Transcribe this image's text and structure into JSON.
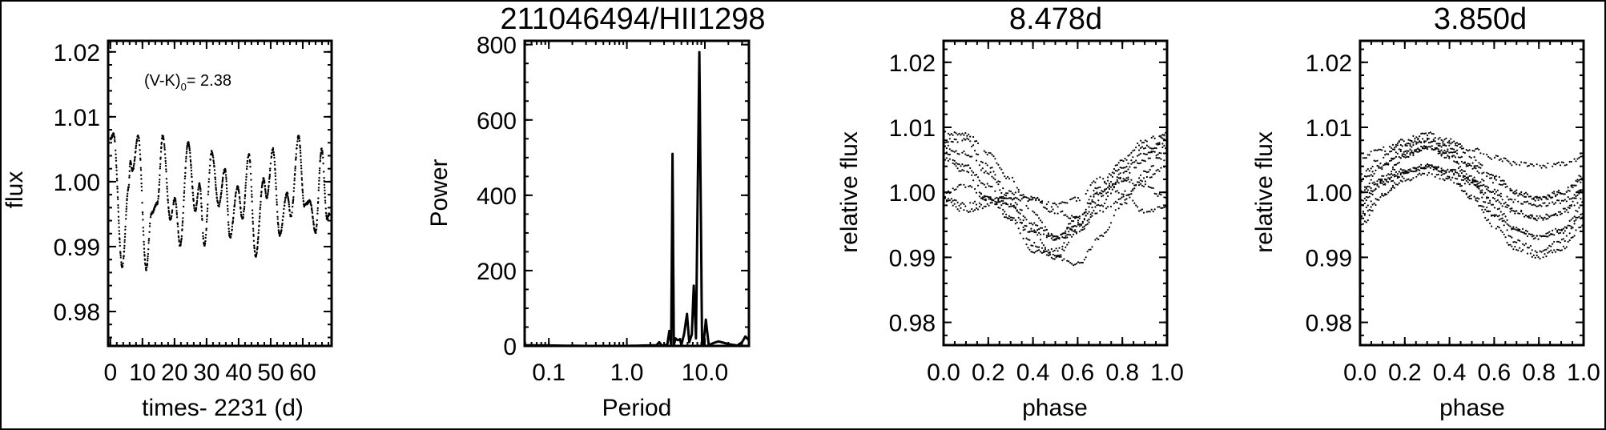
{
  "figure": {
    "background": "#ffffff",
    "ink": "#000000"
  },
  "chart_data": [
    {
      "type": "scatter",
      "title": "",
      "xlabel": "times- 2231 (d)",
      "ylabel": "flux",
      "annotation": {
        "text": "(V-K)",
        "subscript": "0",
        "value": "= 2.38"
      },
      "xlim": [
        -0.7,
        69
      ],
      "ylim": [
        0.9747,
        1.0217
      ],
      "xticks": [
        0,
        10,
        20,
        30,
        40,
        50,
        60
      ],
      "xtick_labels": [
        "0",
        "10",
        "20",
        "30",
        "40",
        "50",
        "60"
      ],
      "yticks": [
        0.98,
        0.99,
        1.0,
        1.01,
        1.02
      ],
      "ytick_labels": [
        "0.98",
        "0.99",
        "1.00",
        "1.01",
        "1.02"
      ],
      "points": [
        [
          0.0,
          1.0066
        ],
        [
          1.0,
          1.0073
        ],
        [
          3.7,
          0.9869
        ],
        [
          5.7,
          0.9991
        ],
        [
          6.2,
          1.0031
        ],
        [
          6.9,
          1.0017
        ],
        [
          8.7,
          1.007
        ],
        [
          11.2,
          0.9865
        ],
        [
          12.8,
          0.9951
        ],
        [
          14.7,
          0.9967
        ],
        [
          16.3,
          1.007
        ],
        [
          18.7,
          0.9943
        ],
        [
          20.1,
          0.9974
        ],
        [
          21.75,
          0.9902
        ],
        [
          24.25,
          1.006
        ],
        [
          26.5,
          0.9955
        ],
        [
          27.8,
          0.9996
        ],
        [
          29.3,
          0.9902
        ],
        [
          31.6,
          1.0046
        ],
        [
          33.8,
          0.9963
        ],
        [
          35.75,
          1.0019
        ],
        [
          37.3,
          0.9914
        ],
        [
          39.7,
          0.9992
        ],
        [
          41.2,
          0.9943
        ],
        [
          43.2,
          1.0042
        ],
        [
          45.3,
          0.9885
        ],
        [
          47.8,
          1.0004
        ],
        [
          48.8,
          0.9976
        ],
        [
          50.7,
          1.005
        ],
        [
          52.8,
          0.9918
        ],
        [
          55.1,
          0.9982
        ],
        [
          56.3,
          0.9947
        ],
        [
          58.7,
          1.007
        ],
        [
          60.5,
          0.9963
        ],
        [
          62.2,
          0.997
        ],
        [
          64.0,
          0.9922
        ],
        [
          65.9,
          1.005
        ],
        [
          67.6,
          0.9943
        ],
        [
          68.4,
          0.9951
        ]
      ]
    },
    {
      "type": "line",
      "title": "211046494/HII1298",
      "xlabel": "Period",
      "ylabel": "Power",
      "xscale": "log",
      "xlim": [
        0.049,
        36.7
      ],
      "ylim": [
        0,
        810
      ],
      "xticks": [
        0.1,
        1.0,
        10.0
      ],
      "xtick_labels": [
        "0.1",
        "1.0",
        "10.0"
      ],
      "yticks": [
        0,
        200,
        400,
        600,
        800
      ],
      "ytick_labels": [
        "0",
        "200",
        "400",
        "600",
        "800"
      ],
      "points": [
        [
          0.049,
          2
        ],
        [
          0.3,
          0
        ],
        [
          1.0,
          0
        ],
        [
          2.4,
          2
        ],
        [
          2.6,
          10
        ],
        [
          2.8,
          1
        ],
        [
          3.3,
          3
        ],
        [
          3.5,
          40
        ],
        [
          3.7,
          2
        ],
        [
          3.85,
          510
        ],
        [
          4.0,
          2
        ],
        [
          4.2,
          20
        ],
        [
          4.5,
          15
        ],
        [
          4.8,
          18
        ],
        [
          5.0,
          3
        ],
        [
          5.4,
          30
        ],
        [
          5.9,
          85
        ],
        [
          6.3,
          10
        ],
        [
          6.8,
          30
        ],
        [
          7.2,
          160
        ],
        [
          7.7,
          20
        ],
        [
          8.5,
          780
        ],
        [
          9.2,
          5
        ],
        [
          9.6,
          5
        ],
        [
          10.3,
          70
        ],
        [
          11.2,
          2
        ],
        [
          13.0,
          8
        ],
        [
          15.0,
          12
        ],
        [
          20.0,
          5
        ],
        [
          26.0,
          1
        ],
        [
          30.0,
          10
        ],
        [
          33.0,
          25
        ],
        [
          36.7,
          15
        ]
      ]
    },
    {
      "type": "scatter",
      "title": "8.478d",
      "xlabel": "phase",
      "ylabel": "relative flux",
      "xlim": [
        0,
        1
      ],
      "ylim": [
        0.9765,
        1.0233
      ],
      "xticks": [
        0,
        0.2,
        0.4,
        0.6,
        0.8,
        1.0
      ],
      "xtick_labels": [
        "0.0",
        "0.2",
        "0.4",
        "0.6",
        "0.8",
        "1.0"
      ],
      "yticks": [
        0.98,
        0.99,
        1.0,
        1.01,
        1.02
      ],
      "ytick_labels": [
        "0.98",
        "0.99",
        "1.00",
        "1.01",
        "1.02"
      ],
      "phase_grid": [
        0,
        0.1,
        0.2,
        0.3,
        0.4,
        0.5,
        0.6,
        0.7,
        0.8,
        0.9,
        1.0
      ],
      "cycles": [
        [
          1.009,
          1.009,
          1.006,
          1.002,
          0.997,
          0.993,
          0.995,
          0.999,
          1.003,
          1.006,
          1.008
        ],
        [
          1.007,
          1.006,
          1.003,
          0.998,
          0.992,
          0.99,
          0.994,
          0.998,
          1.002,
          1.005,
          1.009
        ],
        [
          1.0,
          1.001,
          0.999,
          0.998,
          0.994,
          0.99,
          0.989,
          0.993,
          0.998,
          1.003,
          1.007
        ],
        [
          1.005,
          1.004,
          1.001,
          0.996,
          0.991,
          0.991,
          0.995,
          1.0,
          1.004,
          1.007,
          1.005
        ],
        [
          0.999,
          0.998,
          0.999,
          0.999,
          0.999,
          0.997,
          0.996,
          1.0,
          1.002,
          1.001,
          0.999
        ],
        [
          1.006,
          1.003,
          0.999,
          0.996,
          0.994,
          0.993,
          0.996,
          1.001,
          1.005,
          1.008,
          1.009
        ],
        [
          0.999,
          0.997,
          0.998,
          1.0,
          0.999,
          0.998,
          0.999,
          1.002,
          1.0,
          0.997,
          0.998
        ],
        [
          1.008,
          1.008,
          1.004,
          0.999,
          0.995,
          0.993,
          0.994,
          0.997,
          0.999,
          1.002,
          1.004
        ]
      ]
    },
    {
      "type": "scatter",
      "title": "3.850d",
      "xlabel": "phase",
      "ylabel": "relative flux",
      "xlim": [
        0,
        1
      ],
      "ylim": [
        0.9765,
        1.0233
      ],
      "xticks": [
        0,
        0.2,
        0.4,
        0.6,
        0.8,
        1.0
      ],
      "xtick_labels": [
        "0.0",
        "0.2",
        "0.4",
        "0.6",
        "0.8",
        "1.0"
      ],
      "yticks": [
        0.98,
        0.99,
        1.0,
        1.01,
        1.02
      ],
      "ytick_labels": [
        "0.98",
        "0.99",
        "1.00",
        "1.01",
        "1.02"
      ],
      "phase_grid": [
        0,
        0.1,
        0.2,
        0.3,
        0.4,
        0.5,
        0.6,
        0.7,
        0.8,
        0.9,
        1.0
      ],
      "cycles": [
        [
          1.0025,
          1.0055,
          1.008,
          1.009,
          1.008,
          1.0055,
          1.0025,
          1.0,
          0.999,
          1.0,
          1.0025
        ],
        [
          1.0001,
          1.0039,
          1.0069,
          1.008,
          1.0069,
          1.0039,
          1.0001,
          0.9971,
          0.996,
          0.9971,
          1.0001
        ],
        [
          0.9978,
          1.0022,
          1.0057,
          1.007,
          1.0057,
          1.0022,
          0.9978,
          0.9943,
          0.993,
          0.9943,
          0.9978
        ],
        [
          0.9965,
          1.0015,
          1.0055,
          1.007,
          1.0055,
          1.0015,
          0.9965,
          0.9925,
          0.991,
          0.9925,
          0.9965
        ],
        [
          1.0001,
          1.0019,
          1.0034,
          1.004,
          1.0034,
          1.0019,
          1.0001,
          0.9986,
          0.998,
          0.9986,
          1.0001
        ],
        [
          1.0054,
          1.0066,
          1.0076,
          1.008,
          1.0076,
          1.0066,
          1.0054,
          1.0044,
          1.004,
          1.0044,
          1.0054
        ],
        [
          0.9965,
          0.9995,
          1.002,
          1.003,
          1.002,
          0.9995,
          0.9965,
          0.994,
          0.993,
          0.994,
          0.9965
        ],
        [
          0.9948,
          0.9992,
          1.0027,
          1.004,
          1.0027,
          0.9992,
          0.9948,
          0.9913,
          0.99,
          0.9913,
          0.9948
        ],
        [
          1.0018,
          1.0042,
          1.0062,
          1.007,
          1.0062,
          1.0042,
          1.0018,
          0.9998,
          0.999,
          0.9998,
          1.0018
        ],
        [
          0.9988,
          1.0012,
          1.0032,
          1.004,
          1.0032,
          1.0012,
          0.9988,
          0.9968,
          0.996,
          0.9968,
          0.9988
        ]
      ]
    }
  ]
}
